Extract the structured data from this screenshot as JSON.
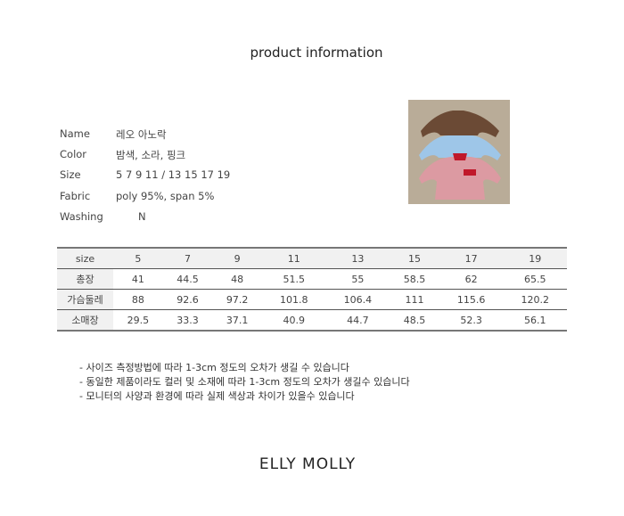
{
  "title": "product information",
  "info": [
    {
      "label": "Name",
      "value": "레오 아노락"
    },
    {
      "label": "Color",
      "value": "밤색, 소라, 핑크"
    },
    {
      "label": "Size",
      "value": "5 7 9 11  / 13 15 17 19"
    },
    {
      "label": "Fabric",
      "value": "poly 95%, span 5%"
    },
    {
      "label": "Washing",
      "value": "N"
    }
  ],
  "table": {
    "header": [
      "size",
      "5",
      "7",
      "9",
      "11",
      "13",
      "15",
      "17",
      "19"
    ],
    "rows": [
      [
        "총장",
        "41",
        "44.5",
        "48",
        "51.5",
        "55",
        "58.5",
        "62",
        "65.5"
      ],
      [
        "가슴둘레",
        "88",
        "92.6",
        "97.2",
        "101.8",
        "106.4",
        "111",
        "115.6",
        "120.2"
      ],
      [
        "소매장",
        "29.5",
        "33.3",
        "37.1",
        "40.9",
        "44.7",
        "48.5",
        "52.3",
        "56.1"
      ]
    ]
  },
  "notes": [
    "- 사이즈 측정방법에 따라 1-3cm 정도의 오차가 생길 수 있습니다",
    "- 동일한 제품이라도 컬러 및 소재에 따라 1-3cm 정도의 오차가 생길수 있습니다",
    "- 모니터의 사양과 환경에 따라 실제 색상과 차이가 있을수 있습니다"
  ],
  "brand": "ELLY MOLLY"
}
